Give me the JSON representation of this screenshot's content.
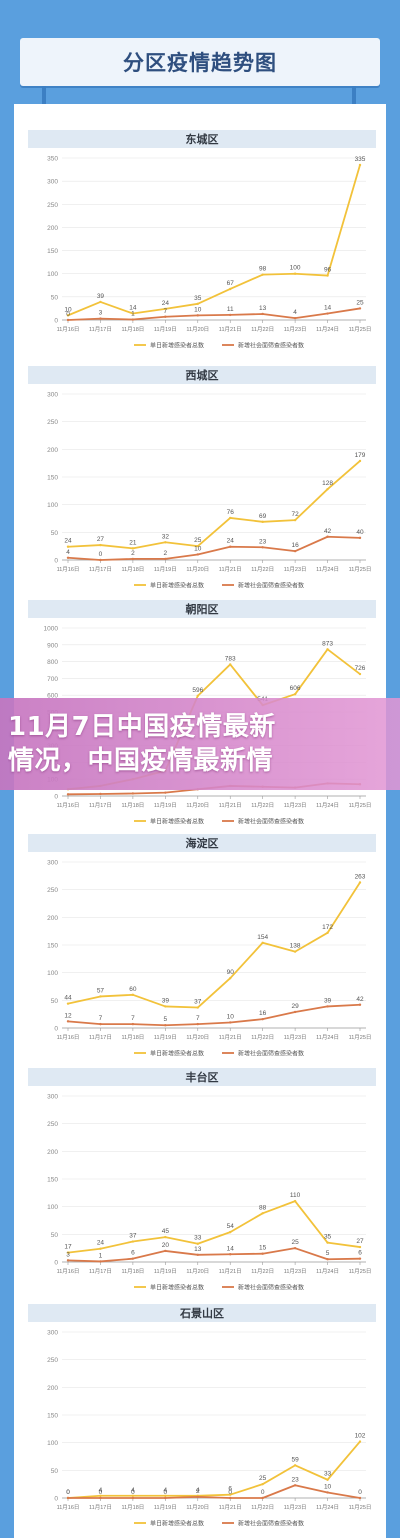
{
  "header": {
    "title": "分区疫情趋势图"
  },
  "overlay": {
    "line1": "11月7日中国疫情最新",
    "line2": "情况，中国疫情最新情"
  },
  "colors": {
    "series1": "#f2c23a",
    "series2": "#d9794a",
    "grid": "#e6e6e6",
    "axis": "#9a9a9a",
    "panel_head": "#dfe9f3"
  },
  "chart_data": [
    {
      "type": "line",
      "title": "东城区",
      "categories": [
        "11月16日",
        "11月17日",
        "11月18日",
        "11月19日",
        "11月20日",
        "11月21日",
        "11月22日",
        "11月23日",
        "11月24日",
        "11月25日"
      ],
      "ylim": [
        0,
        350
      ],
      "yticks": [
        0,
        50,
        100,
        150,
        200,
        250,
        300,
        350
      ],
      "series": [
        {
          "name": "单日新增感染者总数",
          "values": [
            10,
            39,
            14,
            24,
            35,
            67,
            98,
            100,
            96,
            335
          ],
          "labels": [
            "10",
            "39",
            "14",
            "24",
            "35",
            "67",
            "98",
            "100",
            "96",
            "335"
          ]
        },
        {
          "name": "新增社会面筛查感染者数",
          "values": [
            0,
            3,
            1,
            7,
            10,
            11,
            13,
            4,
            14,
            25
          ],
          "labels": [
            "0",
            "3",
            "1",
            "7",
            "10",
            "11",
            "13",
            "4",
            "14",
            "25"
          ]
        }
      ]
    },
    {
      "type": "line",
      "title": "西城区",
      "categories": [
        "11月16日",
        "11月17日",
        "11月18日",
        "11月19日",
        "11月20日",
        "11月21日",
        "11月22日",
        "11月23日",
        "11月24日",
        "11月25日"
      ],
      "ylim": [
        0,
        300
      ],
      "yticks": [
        0,
        50,
        100,
        150,
        200,
        250,
        300
      ],
      "series": [
        {
          "name": "单日新增感染者总数",
          "values": [
            24,
            27,
            21,
            32,
            25,
            76,
            69,
            72,
            128,
            179
          ],
          "labels": [
            "24",
            "27",
            "21",
            "32",
            "25",
            "76",
            "69",
            "72",
            "128",
            "179"
          ]
        },
        {
          "name": "新增社会面筛查感染者数",
          "values": [
            4,
            0,
            2,
            2,
            10,
            24,
            23,
            16,
            42,
            40
          ],
          "labels": [
            "4",
            "0",
            "2",
            "2",
            "10",
            "24",
            "23",
            "16",
            "42",
            "40"
          ]
        }
      ]
    },
    {
      "type": "line",
      "title": "朝阳区",
      "categories": [
        "11月16日",
        "11月17日",
        "11月18日",
        "11月19日",
        "11月20日",
        "11月21日",
        "11月22日",
        "11月23日",
        "11月24日",
        "11月25日"
      ],
      "ylim": [
        0,
        1000
      ],
      "yticks": [
        0,
        100,
        200,
        300,
        400,
        500,
        600,
        700,
        800,
        900,
        1000
      ],
      "series": [
        {
          "name": "单日新增感染者总数",
          "values": [
            40,
            60,
            100,
            150,
            596,
            783,
            541,
            606,
            873,
            726
          ],
          "labels": [
            "",
            "",
            "",
            "",
            "596",
            "783",
            "541",
            "606",
            "873",
            "726"
          ]
        },
        {
          "name": "新增社会面筛查感染者数",
          "values": [
            10,
            12,
            15,
            20,
            40,
            60,
            55,
            50,
            75,
            70
          ],
          "labels": [
            "",
            "",
            "",
            "",
            "",
            "",
            "",
            "",
            "",
            ""
          ]
        }
      ]
    },
    {
      "type": "line",
      "title": "海淀区",
      "categories": [
        "11月16日",
        "11月17日",
        "11月18日",
        "11月19日",
        "11月20日",
        "11月21日",
        "11月22日",
        "11月23日",
        "11月24日",
        "11月25日"
      ],
      "ylim": [
        0,
        300
      ],
      "yticks": [
        0,
        50,
        100,
        150,
        200,
        250,
        300
      ],
      "series": [
        {
          "name": "单日新增感染者总数",
          "values": [
            44,
            57,
            60,
            39,
            37,
            90,
            154,
            138,
            172,
            263
          ],
          "labels": [
            "44",
            "57",
            "60",
            "39",
            "37",
            "90",
            "154",
            "138",
            "172",
            "263"
          ]
        },
        {
          "name": "新增社会面筛查感染者数",
          "values": [
            12,
            7,
            7,
            5,
            7,
            10,
            16,
            29,
            39,
            42
          ],
          "labels": [
            "12",
            "7",
            "7",
            "5",
            "7",
            "10",
            "16",
            "29",
            "39",
            "42"
          ]
        }
      ]
    },
    {
      "type": "line",
      "title": "丰台区",
      "categories": [
        "11月16日",
        "11月17日",
        "11月18日",
        "11月19日",
        "11月20日",
        "11月21日",
        "11月22日",
        "11月23日",
        "11月24日",
        "11月25日"
      ],
      "ylim": [
        0,
        300
      ],
      "yticks": [
        0,
        50,
        100,
        150,
        200,
        250,
        300
      ],
      "series": [
        {
          "name": "单日新增感染者总数",
          "values": [
            17,
            24,
            37,
            45,
            33,
            54,
            88,
            110,
            35,
            27
          ],
          "labels": [
            "17",
            "24",
            "37",
            "45",
            "33",
            "54",
            "88",
            "110",
            "35",
            "27"
          ]
        },
        {
          "name": "新增社会面筛查感染者数",
          "values": [
            3,
            1,
            6,
            20,
            13,
            14,
            15,
            25,
            5,
            6
          ],
          "labels": [
            "3",
            "1",
            "6",
            "20",
            "13",
            "14",
            "15",
            "25",
            "5",
            "6"
          ]
        }
      ]
    },
    {
      "type": "line",
      "title": "石景山区",
      "categories": [
        "11月16日",
        "11月17日",
        "11月18日",
        "11月19日",
        "11月20日",
        "11月21日",
        "11月22日",
        "11月23日",
        "11月24日",
        "11月25日"
      ],
      "ylim": [
        0,
        300
      ],
      "yticks": [
        0,
        50,
        100,
        150,
        200,
        250,
        300
      ],
      "series": [
        {
          "name": "单日新增感染者总数",
          "values": [
            0,
            4,
            4,
            4,
            4,
            6,
            25,
            59,
            33,
            102
          ],
          "labels": [
            "0",
            "4",
            "4",
            "4",
            "4",
            "6",
            "25",
            "59",
            "33",
            "102"
          ]
        },
        {
          "name": "新增社会面筛查感染者数",
          "values": [
            0,
            0,
            0,
            0,
            2,
            0,
            0,
            23,
            10,
            0
          ],
          "labels": [
            "0",
            "0",
            "0",
            "0",
            "2",
            "0",
            "0",
            "23",
            "10",
            "0"
          ]
        }
      ]
    }
  ]
}
